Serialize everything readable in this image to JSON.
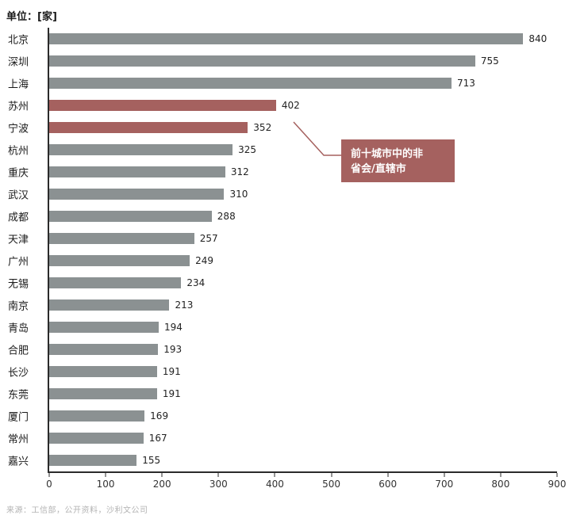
{
  "title": "单位：[家]",
  "source": "来源：工信部，公开资料，沙利文公司",
  "annotation": {
    "lines": [
      "前十城市中的非",
      "省会/直辖市"
    ],
    "text": "前十城市中的非省会/直辖市"
  },
  "colors": {
    "bar": "#8b9192",
    "highlight": "#a5615f",
    "annotation_bg": "#a5615f",
    "axis": "#2b2b2b"
  },
  "chart_data": {
    "type": "bar",
    "orientation": "horizontal",
    "title": "单位：[家]",
    "categories": [
      "北京",
      "深圳",
      "上海",
      "苏州",
      "宁波",
      "杭州",
      "重庆",
      "武汉",
      "成都",
      "天津",
      "广州",
      "无锡",
      "南京",
      "青岛",
      "合肥",
      "长沙",
      "东莞",
      "厦门",
      "常州",
      "嘉兴"
    ],
    "values": [
      840,
      755,
      713,
      402,
      352,
      325,
      312,
      310,
      288,
      257,
      249,
      234,
      213,
      194,
      193,
      191,
      191,
      169,
      167,
      155
    ],
    "highlighted_categories": [
      "苏州",
      "宁波"
    ],
    "highlight_annotation": "前十城市中的非省会/直辖市",
    "xlabel": "",
    "ylabel": "",
    "xlim": [
      0,
      900
    ],
    "xticks": [
      0,
      100,
      200,
      300,
      400,
      500,
      600,
      700,
      800,
      900
    ],
    "grid": false,
    "legend": false
  }
}
